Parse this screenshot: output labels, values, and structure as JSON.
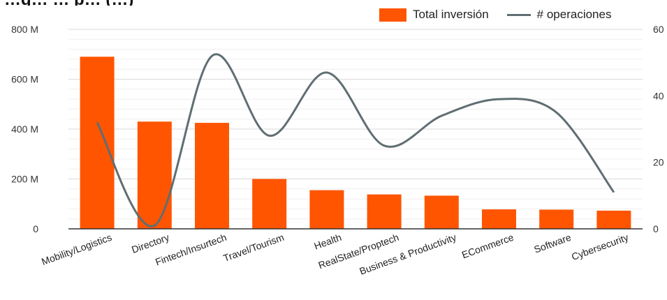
{
  "chart_data": {
    "type": "bar",
    "title": "…g…  … p… (…)",
    "categories": [
      "Mobility/Logistics",
      "Directory",
      "Fintech/Insurtech",
      "Travel/Tourism",
      "Health",
      "RealState/Proptech",
      "Business & Productivity",
      "ECommerce",
      "Software",
      "Cybersecurity"
    ],
    "series": [
      {
        "name": "Total inversión",
        "type": "bar",
        "axis": "left",
        "color": "#ff5500",
        "values": [
          690,
          430,
          425,
          200,
          155,
          138,
          133,
          78,
          77,
          73
        ]
      },
      {
        "name": "# operaciones",
        "type": "line",
        "axis": "right",
        "color": "#5f6e72",
        "values": [
          32,
          1,
          52,
          28,
          47,
          25,
          34,
          39,
          35,
          11
        ]
      }
    ],
    "y_left": {
      "ylim": [
        0,
        800
      ],
      "ticks": [
        0,
        200,
        400,
        600,
        800
      ],
      "tick_labels": [
        "0",
        "200 M",
        "400 M",
        "600 M",
        "800 M"
      ]
    },
    "y_right": {
      "ylim": [
        0,
        60
      ],
      "ticks": [
        0,
        20,
        40,
        60
      ],
      "tick_labels": [
        "0",
        "20",
        "40",
        "60"
      ]
    },
    "legend": "top-right",
    "grid": true
  }
}
